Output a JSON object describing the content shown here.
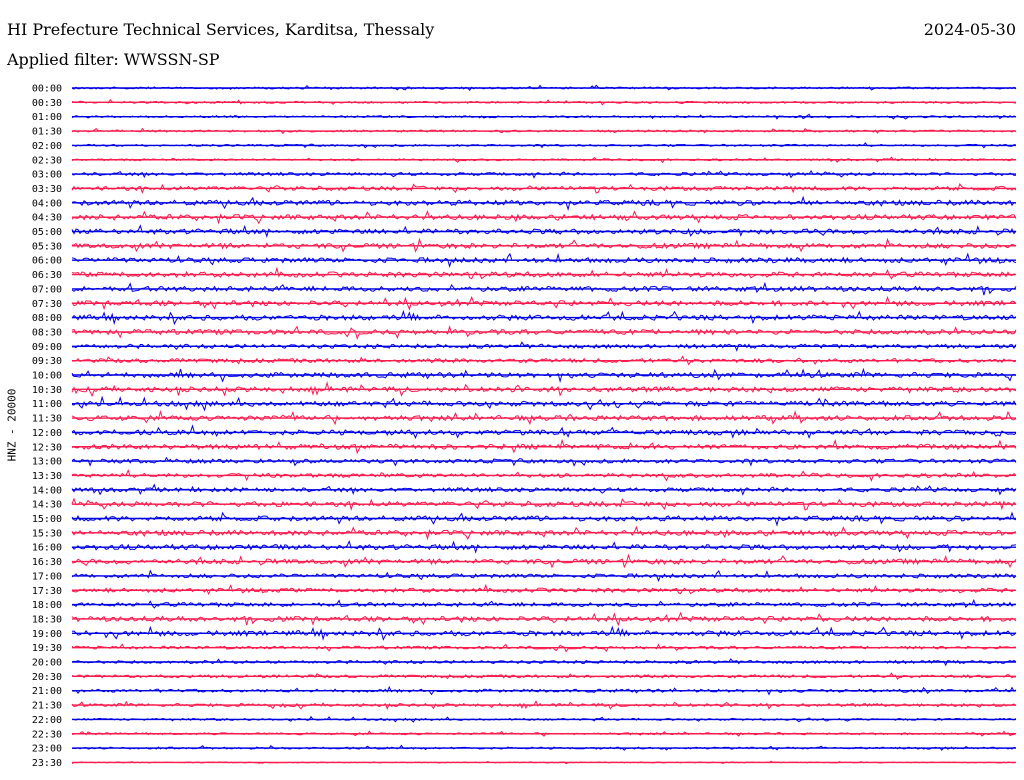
{
  "header": {
    "title": "HI Prefecture Technical Services, Karditsa, Thessaly",
    "date": "2024-05-30",
    "filter_label": "Applied filter: WWSSN-SP",
    "channel_label": "HNZ - 20000"
  },
  "colors": {
    "even_row": "#0000e6",
    "odd_row": "#ff1a4d",
    "text": "#000000",
    "background": "#ffffff"
  },
  "chart_data": {
    "type": "line",
    "subtype": "helicorder",
    "title": "HI Prefecture Technical Services, Karditsa, Thessaly",
    "ylabel": "HNZ - 20000",
    "xlabel": "",
    "row_labels": [
      "00:00",
      "00:30",
      "01:00",
      "01:30",
      "02:00",
      "02:30",
      "03:00",
      "03:30",
      "04:00",
      "04:30",
      "05:00",
      "05:30",
      "06:00",
      "06:30",
      "07:00",
      "07:30",
      "08:00",
      "08:30",
      "09:00",
      "09:30",
      "10:00",
      "10:30",
      "11:00",
      "11:30",
      "12:00",
      "12:30",
      "13:00",
      "13:30",
      "14:00",
      "14:30",
      "15:00",
      "15:30",
      "16:00",
      "16:30",
      "17:00",
      "17:30",
      "18:00",
      "18:30",
      "19:00",
      "19:30",
      "20:00",
      "20:30",
      "21:00",
      "21:30",
      "22:00",
      "22:30",
      "23:00",
      "23:30"
    ],
    "rows": [
      {
        "label": "00:00",
        "color": "blue",
        "amplitude": 2
      },
      {
        "label": "00:30",
        "color": "red",
        "amplitude": 2
      },
      {
        "label": "01:00",
        "color": "blue",
        "amplitude": 2
      },
      {
        "label": "01:30",
        "color": "red",
        "amplitude": 2
      },
      {
        "label": "02:00",
        "color": "blue",
        "amplitude": 2
      },
      {
        "label": "02:30",
        "color": "red",
        "amplitude": 2
      },
      {
        "label": "03:00",
        "color": "blue",
        "amplitude": 3
      },
      {
        "label": "03:30",
        "color": "red",
        "amplitude": 4
      },
      {
        "label": "04:00",
        "color": "blue",
        "amplitude": 5
      },
      {
        "label": "04:30",
        "color": "red",
        "amplitude": 5
      },
      {
        "label": "05:00",
        "color": "blue",
        "amplitude": 5
      },
      {
        "label": "05:30",
        "color": "red",
        "amplitude": 5
      },
      {
        "label": "06:00",
        "color": "blue",
        "amplitude": 5
      },
      {
        "label": "06:30",
        "color": "red",
        "amplitude": 5
      },
      {
        "label": "07:00",
        "color": "blue",
        "amplitude": 5
      },
      {
        "label": "07:30",
        "color": "red",
        "amplitude": 5
      },
      {
        "label": "08:00",
        "color": "blue",
        "amplitude": 5
      },
      {
        "label": "08:30",
        "color": "red",
        "amplitude": 5
      },
      {
        "label": "09:00",
        "color": "blue",
        "amplitude": 4
      },
      {
        "label": "09:30",
        "color": "red",
        "amplitude": 4
      },
      {
        "label": "10:00",
        "color": "blue",
        "amplitude": 5
      },
      {
        "label": "10:30",
        "color": "red",
        "amplitude": 5
      },
      {
        "label": "11:00",
        "color": "blue",
        "amplitude": 5
      },
      {
        "label": "11:30",
        "color": "red",
        "amplitude": 5
      },
      {
        "label": "12:00",
        "color": "blue",
        "amplitude": 5
      },
      {
        "label": "12:30",
        "color": "red",
        "amplitude": 5
      },
      {
        "label": "13:00",
        "color": "blue",
        "amplitude": 4
      },
      {
        "label": "13:30",
        "color": "red",
        "amplitude": 4
      },
      {
        "label": "14:00",
        "color": "blue",
        "amplitude": 4
      },
      {
        "label": "14:30",
        "color": "red",
        "amplitude": 5
      },
      {
        "label": "15:00",
        "color": "blue",
        "amplitude": 5
      },
      {
        "label": "15:30",
        "color": "red",
        "amplitude": 5
      },
      {
        "label": "16:00",
        "color": "blue",
        "amplitude": 5
      },
      {
        "label": "16:30",
        "color": "red",
        "amplitude": 5
      },
      {
        "label": "17:00",
        "color": "blue",
        "amplitude": 4
      },
      {
        "label": "17:30",
        "color": "red",
        "amplitude": 4
      },
      {
        "label": "18:00",
        "color": "blue",
        "amplitude": 4
      },
      {
        "label": "18:30",
        "color": "red",
        "amplitude": 5
      },
      {
        "label": "19:00",
        "color": "blue",
        "amplitude": 5
      },
      {
        "label": "19:30",
        "color": "red",
        "amplitude": 3
      },
      {
        "label": "20:00",
        "color": "blue",
        "amplitude": 3
      },
      {
        "label": "20:30",
        "color": "red",
        "amplitude": 3
      },
      {
        "label": "21:00",
        "color": "blue",
        "amplitude": 3
      },
      {
        "label": "21:30",
        "color": "red",
        "amplitude": 3
      },
      {
        "label": "22:00",
        "color": "blue",
        "amplitude": 2
      },
      {
        "label": "22:30",
        "color": "red",
        "amplitude": 2
      },
      {
        "label": "23:00",
        "color": "blue",
        "amplitude": 2
      },
      {
        "label": "23:30",
        "color": "red",
        "amplitude": 1
      }
    ],
    "grid": false,
    "legend": "none"
  }
}
